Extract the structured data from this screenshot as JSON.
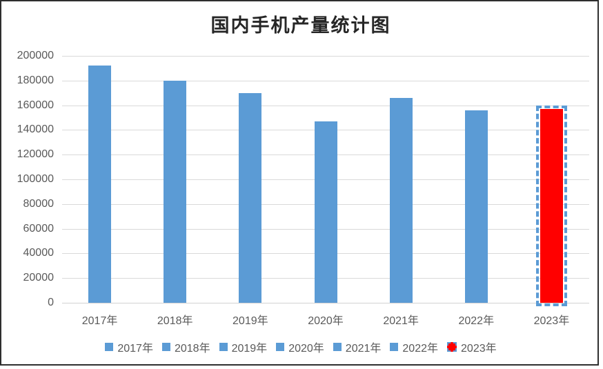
{
  "chart_data": {
    "type": "bar",
    "title": "国内手机产量统计图",
    "categories": [
      "2017年",
      "2018年",
      "2019年",
      "2020年",
      "2021年",
      "2022年",
      "2023年"
    ],
    "values": [
      192000,
      180000,
      170000,
      147000,
      166000,
      156000,
      157000
    ],
    "xlabel": "",
    "ylabel": "",
    "ylim": [
      0,
      200000
    ],
    "yticks": [
      0,
      20000,
      40000,
      60000,
      80000,
      100000,
      120000,
      140000,
      160000,
      180000,
      200000
    ],
    "grid": true,
    "legend_position": "bottom",
    "legend_labels": [
      "2017年",
      "2018年",
      "2019年",
      "2020年",
      "2021年",
      "2022年",
      "2023年"
    ],
    "selected_category": "2023年",
    "colors": {
      "bar": "#5b9bd5",
      "selected_bar_fill": "#ff0000",
      "selection_handles": "#5b9bd5",
      "gridline": "#d9d9d9",
      "axis_text": "#595959",
      "title_text": "#262626",
      "frame_border": "#2e2e2e",
      "background": "#ffffff"
    }
  }
}
